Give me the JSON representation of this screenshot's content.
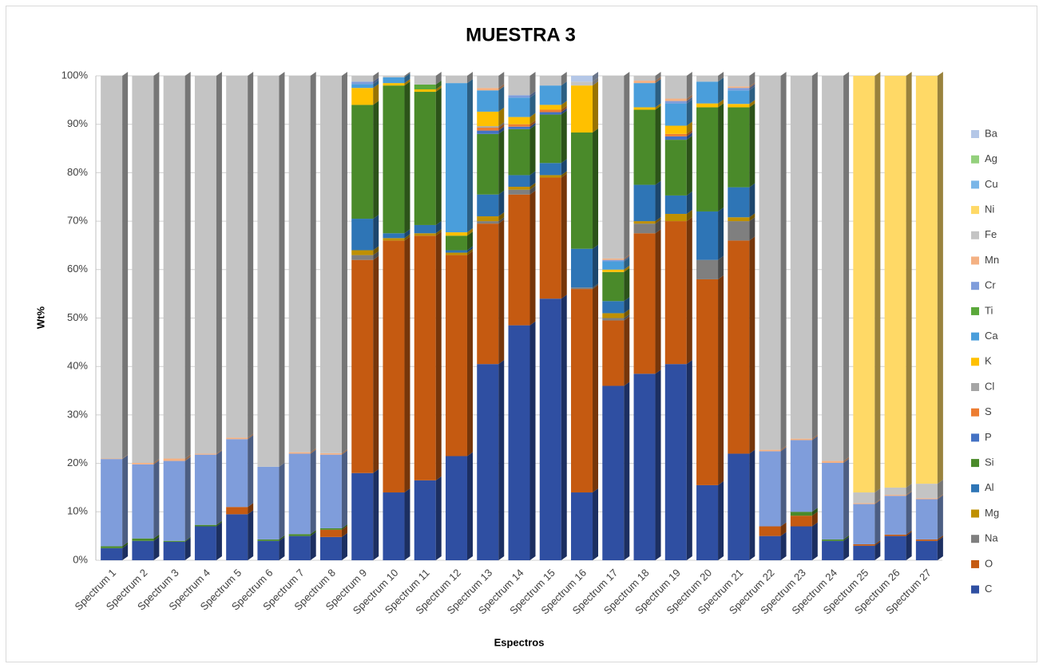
{
  "chart_data": {
    "type": "stacked_bar",
    "title": "MUESTRA 3",
    "x_label": "Espectros",
    "y_label": "Wt%",
    "categories": [
      "Spectrum 1",
      "Spectrum 2",
      "Spectrum 3",
      "Spectrum 4",
      "Spectrum 5",
      "Spectrum 6",
      "Spectrum 7",
      "Spectrum 8",
      "Spectrum 9",
      "Spectrum 10",
      "Spectrum 11",
      "Spectrum 12",
      "Spectrum 13",
      "Spectrum 14",
      "Spectrum 15",
      "Spectrum 16",
      "Spectrum 17",
      "Spectrum 18",
      "Spectrum 19",
      "Spectrum 20",
      "Spectrum 21",
      "Spectrum 22",
      "Spectrum 23",
      "Spectrum 24",
      "Spectrum 25",
      "Spectrum 26",
      "Spectrum 27"
    ],
    "ylim": [
      0,
      100
    ],
    "yticks": [
      {
        "value": 0,
        "label": "0%"
      },
      {
        "value": 10,
        "label": "10%"
      },
      {
        "value": 20,
        "label": "20%"
      },
      {
        "value": 30,
        "label": "30%"
      },
      {
        "value": 40,
        "label": "40%"
      },
      {
        "value": 50,
        "label": "50%"
      },
      {
        "value": 60,
        "label": "60%"
      },
      {
        "value": 70,
        "label": "70%"
      },
      {
        "value": 80,
        "label": "80%"
      },
      {
        "value": 90,
        "label": "90%"
      },
      {
        "value": 100,
        "label": "100%"
      }
    ],
    "grid": true,
    "legend": "right",
    "series": [
      {
        "name": "C",
        "color": "#2f4fa2",
        "values": [
          2.5,
          4,
          3.8,
          7,
          9.5,
          4,
          5,
          4.8,
          18,
          14,
          16.5,
          21.5,
          40.5,
          48.5,
          54,
          14,
          36,
          38.5,
          40.5,
          15.5,
          22,
          5,
          7,
          4,
          3,
          5,
          4
        ]
      },
      {
        "name": "O",
        "color": "#c55a11",
        "values": [
          0,
          0,
          0,
          0,
          1.5,
          0,
          0,
          1.5,
          44,
          52,
          50.5,
          41.5,
          29,
          27,
          25,
          42,
          13.5,
          29,
          29.5,
          42.5,
          44,
          2,
          2.2,
          0,
          0.3,
          0.3,
          0.3
        ]
      },
      {
        "name": "Na",
        "color": "#7f7f7f",
        "values": [
          0,
          0,
          0,
          0,
          0,
          0,
          0,
          0,
          1,
          0,
          0,
          0,
          0.5,
          1,
          0,
          0.3,
          0.5,
          2,
          0,
          4,
          4,
          0,
          0,
          0,
          0,
          0,
          0
        ]
      },
      {
        "name": "Mg",
        "color": "#bf9000",
        "values": [
          0,
          0,
          0,
          0,
          0,
          0,
          0,
          0,
          1,
          0.5,
          0.5,
          0.5,
          1,
          0.6,
          0.5,
          0,
          1,
          0.5,
          1.5,
          0,
          0.8,
          0,
          0,
          0,
          0,
          0,
          0
        ]
      },
      {
        "name": "Al",
        "color": "#2e75b6",
        "values": [
          0,
          0,
          0,
          0,
          0,
          0,
          0,
          0,
          6.5,
          1,
          1.7,
          0.5,
          4.5,
          2.4,
          2.5,
          8,
          2.5,
          7.5,
          3.8,
          10,
          6.2,
          0,
          0,
          0,
          0,
          0,
          0
        ]
      },
      {
        "name": "Si",
        "color": "#4a8a2a",
        "values": [
          0.4,
          0.5,
          0.2,
          0.3,
          0,
          0.3,
          0.4,
          0.3,
          23.5,
          30.5,
          27.5,
          3,
          12.5,
          9.5,
          10,
          24,
          6,
          15.5,
          11.5,
          21.5,
          16.5,
          0,
          0.8,
          0.3,
          0,
          0,
          0
        ]
      },
      {
        "name": "P",
        "color": "#4472c4",
        "values": [
          0,
          0,
          0,
          0,
          0,
          0,
          0,
          0,
          0,
          0,
          0,
          0,
          0.7,
          0.5,
          0.5,
          0,
          0,
          0,
          0.7,
          0,
          0,
          0,
          0,
          0,
          0,
          0,
          0
        ]
      },
      {
        "name": "S",
        "color": "#ed7d31",
        "values": [
          0,
          0,
          0,
          0,
          0,
          0,
          0,
          0,
          0,
          0,
          0,
          0,
          0.6,
          0.5,
          0.5,
          0,
          0,
          0,
          0.5,
          0,
          0,
          0,
          0,
          0,
          0,
          0,
          0
        ]
      },
      {
        "name": "Cl",
        "color": "#a5a5a5",
        "values": [
          0,
          0,
          0,
          0,
          0,
          0,
          0,
          0,
          0,
          0,
          0,
          0,
          0.3,
          0,
          0,
          0,
          0,
          0,
          0,
          0,
          0,
          0,
          0,
          0,
          0,
          0,
          0
        ]
      },
      {
        "name": "K",
        "color": "#ffc000",
        "values": [
          0,
          0,
          0,
          0,
          0,
          0,
          0,
          0,
          3.5,
          0.5,
          0.5,
          0.7,
          3,
          1.5,
          1,
          9.7,
          0.5,
          0.5,
          1.7,
          0.8,
          0.7,
          0,
          0,
          0,
          0,
          0,
          0
        ]
      },
      {
        "name": "Ca",
        "color": "#4a9edb",
        "values": [
          0,
          0,
          0,
          0,
          0,
          0,
          0,
          0,
          0.8,
          1.2,
          0,
          30.8,
          4.4,
          4,
          4,
          0,
          1.7,
          5,
          4.6,
          4.5,
          2.8,
          0,
          0,
          0,
          0,
          0,
          0
        ]
      },
      {
        "name": "Ti",
        "color": "#5aa83a",
        "values": [
          0,
          0,
          0,
          0,
          0,
          0,
          0,
          0,
          0,
          0,
          1,
          0,
          0,
          0,
          0,
          0,
          0,
          0,
          0,
          0,
          0,
          0,
          0,
          0,
          0,
          0,
          0
        ]
      },
      {
        "name": "Cr",
        "color": "#7f9ddb",
        "values": [
          18,
          15.3,
          16.5,
          14.5,
          14,
          15,
          16.6,
          15.2,
          0.5,
          0,
          0,
          0,
          0,
          0.5,
          0,
          0,
          0.3,
          0,
          0.5,
          0,
          0.5,
          15.5,
          14.8,
          15.8,
          8.3,
          8,
          8.3
        ]
      },
      {
        "name": "Mn",
        "color": "#f4b183",
        "values": [
          0.1,
          0.3,
          0.5,
          0.2,
          0.3,
          0,
          0.3,
          0.3,
          0,
          0,
          0,
          0,
          0.5,
          0,
          0,
          0,
          0.3,
          0.5,
          0.5,
          0,
          0.3,
          0.3,
          0.3,
          0.4,
          0.2,
          0.2,
          0.2
        ]
      },
      {
        "name": "Fe",
        "color": "#c4c4c4",
        "values": [
          79,
          79.9,
          79,
          78,
          74.7,
          80.7,
          77.7,
          77.9,
          1.2,
          0.3,
          1.8,
          1.5,
          2.5,
          4,
          2,
          0.8,
          37.7,
          1,
          4.7,
          1.2,
          2.2,
          77.2,
          74.9,
          79.5,
          2.2,
          1.5,
          3
        ]
      },
      {
        "name": "Ni",
        "color": "#ffd966",
        "values": [
          0,
          0,
          0,
          0,
          0,
          0,
          0,
          0,
          0,
          0,
          0,
          0,
          0,
          0,
          0,
          0,
          0,
          0,
          0,
          0,
          0,
          0,
          0,
          0,
          86,
          85,
          84.2
        ]
      },
      {
        "name": "Cu",
        "color": "#7ab6e8",
        "values": [
          0,
          0,
          0,
          0,
          0,
          0,
          0,
          0,
          0,
          0,
          0,
          0,
          0,
          0,
          0,
          0,
          0,
          0,
          0,
          0,
          0,
          0,
          0,
          0,
          0,
          0,
          0
        ]
      },
      {
        "name": "Ag",
        "color": "#93d07c",
        "values": [
          0,
          0,
          0,
          0,
          0,
          0,
          0,
          0,
          0,
          0,
          0,
          0,
          0,
          0,
          0,
          0,
          0,
          0,
          0,
          0,
          0,
          0,
          0,
          0,
          0,
          0,
          0
        ]
      },
      {
        "name": "Ba",
        "color": "#b4c7e7",
        "values": [
          0,
          0,
          0,
          0,
          0,
          0,
          0,
          0,
          0,
          0,
          0,
          0,
          0,
          0,
          0,
          1.2,
          0,
          0,
          0,
          0,
          0,
          0,
          0,
          0,
          0,
          0,
          0
        ]
      }
    ]
  }
}
